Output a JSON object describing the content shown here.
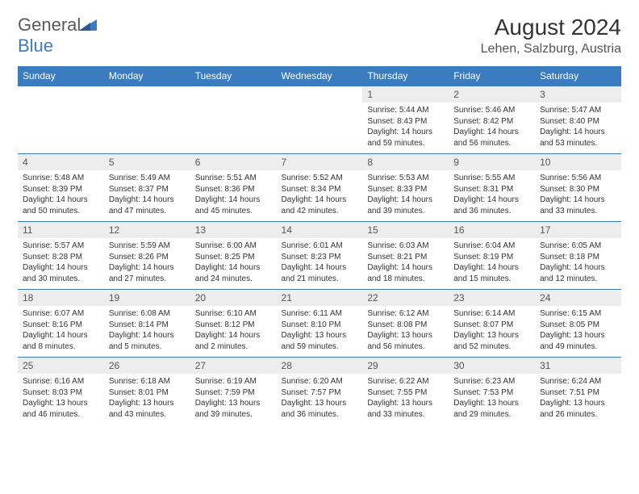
{
  "logo": {
    "text_gray": "General",
    "text_blue": "Blue"
  },
  "title": "August 2024",
  "location": "Lehen, Salzburg, Austria",
  "colors": {
    "header_bg": "#3b7bbf",
    "header_text": "#ffffff",
    "daynum_bg": "#ededed",
    "border": "#3b7bbf"
  },
  "day_headers": [
    "Sunday",
    "Monday",
    "Tuesday",
    "Wednesday",
    "Thursday",
    "Friday",
    "Saturday"
  ],
  "weeks": [
    [
      null,
      null,
      null,
      null,
      {
        "num": "1",
        "sunrise": "5:44 AM",
        "sunset": "8:43 PM",
        "daylight": "14 hours and 59 minutes."
      },
      {
        "num": "2",
        "sunrise": "5:46 AM",
        "sunset": "8:42 PM",
        "daylight": "14 hours and 56 minutes."
      },
      {
        "num": "3",
        "sunrise": "5:47 AM",
        "sunset": "8:40 PM",
        "daylight": "14 hours and 53 minutes."
      }
    ],
    [
      {
        "num": "4",
        "sunrise": "5:48 AM",
        "sunset": "8:39 PM",
        "daylight": "14 hours and 50 minutes."
      },
      {
        "num": "5",
        "sunrise": "5:49 AM",
        "sunset": "8:37 PM",
        "daylight": "14 hours and 47 minutes."
      },
      {
        "num": "6",
        "sunrise": "5:51 AM",
        "sunset": "8:36 PM",
        "daylight": "14 hours and 45 minutes."
      },
      {
        "num": "7",
        "sunrise": "5:52 AM",
        "sunset": "8:34 PM",
        "daylight": "14 hours and 42 minutes."
      },
      {
        "num": "8",
        "sunrise": "5:53 AM",
        "sunset": "8:33 PM",
        "daylight": "14 hours and 39 minutes."
      },
      {
        "num": "9",
        "sunrise": "5:55 AM",
        "sunset": "8:31 PM",
        "daylight": "14 hours and 36 minutes."
      },
      {
        "num": "10",
        "sunrise": "5:56 AM",
        "sunset": "8:30 PM",
        "daylight": "14 hours and 33 minutes."
      }
    ],
    [
      {
        "num": "11",
        "sunrise": "5:57 AM",
        "sunset": "8:28 PM",
        "daylight": "14 hours and 30 minutes."
      },
      {
        "num": "12",
        "sunrise": "5:59 AM",
        "sunset": "8:26 PM",
        "daylight": "14 hours and 27 minutes."
      },
      {
        "num": "13",
        "sunrise": "6:00 AM",
        "sunset": "8:25 PM",
        "daylight": "14 hours and 24 minutes."
      },
      {
        "num": "14",
        "sunrise": "6:01 AM",
        "sunset": "8:23 PM",
        "daylight": "14 hours and 21 minutes."
      },
      {
        "num": "15",
        "sunrise": "6:03 AM",
        "sunset": "8:21 PM",
        "daylight": "14 hours and 18 minutes."
      },
      {
        "num": "16",
        "sunrise": "6:04 AM",
        "sunset": "8:19 PM",
        "daylight": "14 hours and 15 minutes."
      },
      {
        "num": "17",
        "sunrise": "6:05 AM",
        "sunset": "8:18 PM",
        "daylight": "14 hours and 12 minutes."
      }
    ],
    [
      {
        "num": "18",
        "sunrise": "6:07 AM",
        "sunset": "8:16 PM",
        "daylight": "14 hours and 8 minutes."
      },
      {
        "num": "19",
        "sunrise": "6:08 AM",
        "sunset": "8:14 PM",
        "daylight": "14 hours and 5 minutes."
      },
      {
        "num": "20",
        "sunrise": "6:10 AM",
        "sunset": "8:12 PM",
        "daylight": "14 hours and 2 minutes."
      },
      {
        "num": "21",
        "sunrise": "6:11 AM",
        "sunset": "8:10 PM",
        "daylight": "13 hours and 59 minutes."
      },
      {
        "num": "22",
        "sunrise": "6:12 AM",
        "sunset": "8:08 PM",
        "daylight": "13 hours and 56 minutes."
      },
      {
        "num": "23",
        "sunrise": "6:14 AM",
        "sunset": "8:07 PM",
        "daylight": "13 hours and 52 minutes."
      },
      {
        "num": "24",
        "sunrise": "6:15 AM",
        "sunset": "8:05 PM",
        "daylight": "13 hours and 49 minutes."
      }
    ],
    [
      {
        "num": "25",
        "sunrise": "6:16 AM",
        "sunset": "8:03 PM",
        "daylight": "13 hours and 46 minutes."
      },
      {
        "num": "26",
        "sunrise": "6:18 AM",
        "sunset": "8:01 PM",
        "daylight": "13 hours and 43 minutes."
      },
      {
        "num": "27",
        "sunrise": "6:19 AM",
        "sunset": "7:59 PM",
        "daylight": "13 hours and 39 minutes."
      },
      {
        "num": "28",
        "sunrise": "6:20 AM",
        "sunset": "7:57 PM",
        "daylight": "13 hours and 36 minutes."
      },
      {
        "num": "29",
        "sunrise": "6:22 AM",
        "sunset": "7:55 PM",
        "daylight": "13 hours and 33 minutes."
      },
      {
        "num": "30",
        "sunrise": "6:23 AM",
        "sunset": "7:53 PM",
        "daylight": "13 hours and 29 minutes."
      },
      {
        "num": "31",
        "sunrise": "6:24 AM",
        "sunset": "7:51 PM",
        "daylight": "13 hours and 26 minutes."
      }
    ]
  ],
  "labels": {
    "sunrise": "Sunrise:",
    "sunset": "Sunset:",
    "daylight": "Daylight:"
  }
}
